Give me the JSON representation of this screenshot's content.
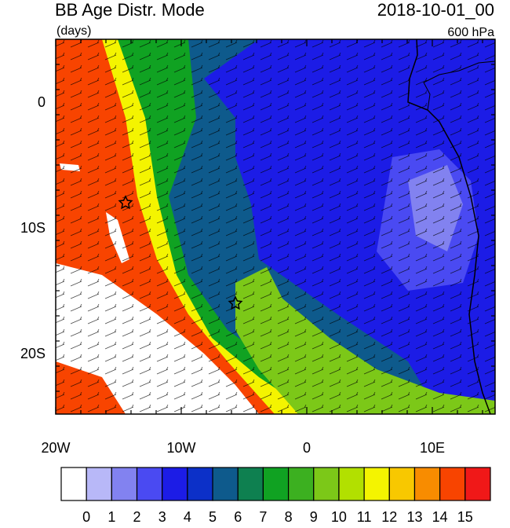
{
  "header": {
    "title": "BB Age Distr. Mode",
    "units": "(days)",
    "date": "2018-10-01_00",
    "level": "600 hPa"
  },
  "map": {
    "lon_labels": [
      "20W",
      "10W",
      "0",
      "10E"
    ],
    "lat_labels": [
      "0",
      "10S",
      "20S"
    ]
  },
  "colorbar": {
    "colors": [
      "#ffffff",
      "#b8b8f8",
      "#8282f0",
      "#4a4af2",
      "#1c1ce6",
      "#0c30c8",
      "#0e5a8c",
      "#0e8050",
      "#10a222",
      "#3cb020",
      "#7cc818",
      "#b2e000",
      "#f4f400",
      "#f8c800",
      "#f88c00",
      "#f84400",
      "#f01818"
    ],
    "labels": [
      0,
      1,
      2,
      3,
      4,
      5,
      6,
      7,
      8,
      9,
      10,
      11,
      12,
      13,
      14,
      15
    ]
  }
}
